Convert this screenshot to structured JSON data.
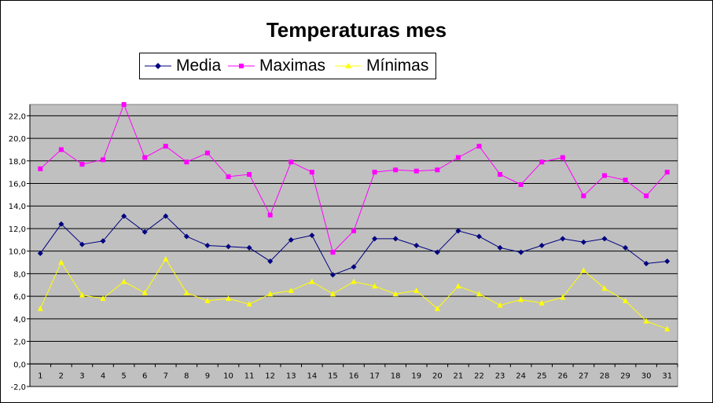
{
  "chart_data": {
    "type": "line",
    "title": "Temperaturas mes",
    "xlabel": "",
    "ylabel": "",
    "ylim": [
      -2.0,
      23.0
    ],
    "yticks": [
      "-2,0",
      "0,0",
      "2,0",
      "4,0",
      "6,0",
      "8,0",
      "10,0",
      "12,0",
      "14,0",
      "16,0",
      "18,0",
      "20,0",
      "22,0"
    ],
    "ytick_values": [
      -2,
      0,
      2,
      4,
      6,
      8,
      10,
      12,
      14,
      16,
      18,
      20,
      22
    ],
    "categories": [
      "1",
      "2",
      "3",
      "4",
      "5",
      "6",
      "7",
      "8",
      "9",
      "10",
      "11",
      "12",
      "13",
      "14",
      "15",
      "16",
      "17",
      "18",
      "19",
      "20",
      "21",
      "22",
      "23",
      "24",
      "25",
      "26",
      "27",
      "28",
      "29",
      "30",
      "31"
    ],
    "grid": true,
    "legend_placement": "top-center",
    "plot_background": "#c0c0c0",
    "series": [
      {
        "name": "Media",
        "color": "#000080",
        "marker": "diamond",
        "values": [
          9.8,
          12.4,
          10.6,
          10.9,
          13.1,
          11.7,
          13.1,
          11.3,
          10.5,
          10.4,
          10.3,
          9.1,
          11.0,
          11.4,
          7.9,
          8.6,
          11.1,
          11.1,
          10.5,
          9.9,
          11.8,
          11.3,
          10.3,
          9.9,
          10.5,
          11.1,
          10.8,
          11.1,
          10.3,
          8.9,
          9.1
        ]
      },
      {
        "name": "Maximas",
        "color": "#ff00ff",
        "marker": "square",
        "values": [
          17.3,
          19.0,
          17.7,
          18.1,
          23.0,
          18.3,
          19.3,
          17.9,
          18.7,
          16.6,
          16.8,
          13.2,
          17.9,
          17.0,
          9.9,
          11.8,
          17.0,
          17.2,
          17.1,
          17.2,
          18.3,
          19.3,
          16.8,
          15.9,
          17.9,
          18.3,
          14.9,
          16.7,
          16.3,
          14.9,
          17.0
        ]
      },
      {
        "name": "Mínimas",
        "color": "#ffff00",
        "marker": "triangle",
        "values": [
          4.9,
          9.0,
          6.1,
          5.8,
          7.3,
          6.3,
          9.3,
          6.3,
          5.6,
          5.8,
          5.3,
          6.2,
          6.5,
          7.3,
          6.2,
          7.3,
          6.9,
          6.2,
          6.5,
          4.9,
          6.9,
          6.2,
          5.2,
          5.7,
          5.4,
          5.9,
          8.3,
          6.7,
          5.6,
          3.8,
          3.1
        ]
      }
    ]
  }
}
